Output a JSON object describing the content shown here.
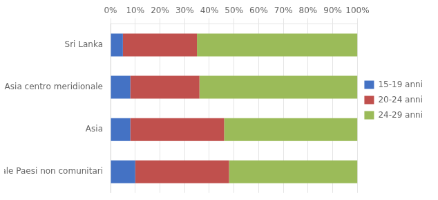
{
  "chart_data": {
    "type": "bar",
    "orientation": "horizontal",
    "stacked": true,
    "categories": [
      "Sri Lanka",
      "Altri Asia centro meridionale",
      "Asia",
      "Totale Paesi non comunitari"
    ],
    "series": [
      {
        "name": "15-19 anni",
        "color": "#4472C4",
        "values": [
          5,
          8,
          8,
          10
        ]
      },
      {
        "name": "20-24 anni",
        "color": "#C0504D",
        "values": [
          30,
          28,
          38,
          38
        ]
      },
      {
        "name": "24-29 anni",
        "color": "#9BBB59",
        "values": [
          65,
          64,
          54,
          52
        ]
      }
    ],
    "xlim": [
      0,
      100
    ],
    "xticks": [
      {
        "value": 0,
        "label": "0%"
      },
      {
        "value": 10,
        "label": "10%"
      },
      {
        "value": 20,
        "label": "20%"
      },
      {
        "value": 30,
        "label": "30%"
      },
      {
        "value": 40,
        "label": "40%"
      },
      {
        "value": 50,
        "label": "50%"
      },
      {
        "value": 60,
        "label": "60%"
      },
      {
        "value": 70,
        "label": "70%"
      },
      {
        "value": 80,
        "label": "80%"
      },
      {
        "value": 90,
        "label": "90%"
      },
      {
        "value": 100,
        "label": "100%"
      }
    ],
    "grid": true,
    "legend": "right"
  }
}
